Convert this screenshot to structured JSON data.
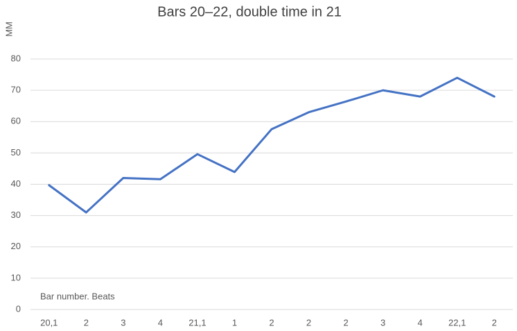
{
  "chart_data": {
    "type": "line",
    "title": "Bars 20–22, double time in 21",
    "y_label": "MM",
    "annotation": "Bar number. Beats",
    "categories": [
      "20,1",
      "2",
      "3",
      "4",
      "21,1",
      "1",
      "2",
      "2",
      "2",
      "3",
      "4",
      "22,1",
      "2"
    ],
    "values": [
      39.7,
      31,
      42,
      41.6,
      49.6,
      43.9,
      57.6,
      63,
      66.4,
      70,
      68,
      74,
      68
    ],
    "color": "#4472c4",
    "ylim": [
      0,
      80
    ],
    "yticks": [
      0,
      10,
      20,
      30,
      40,
      50,
      60,
      70,
      80
    ],
    "grid": true
  }
}
